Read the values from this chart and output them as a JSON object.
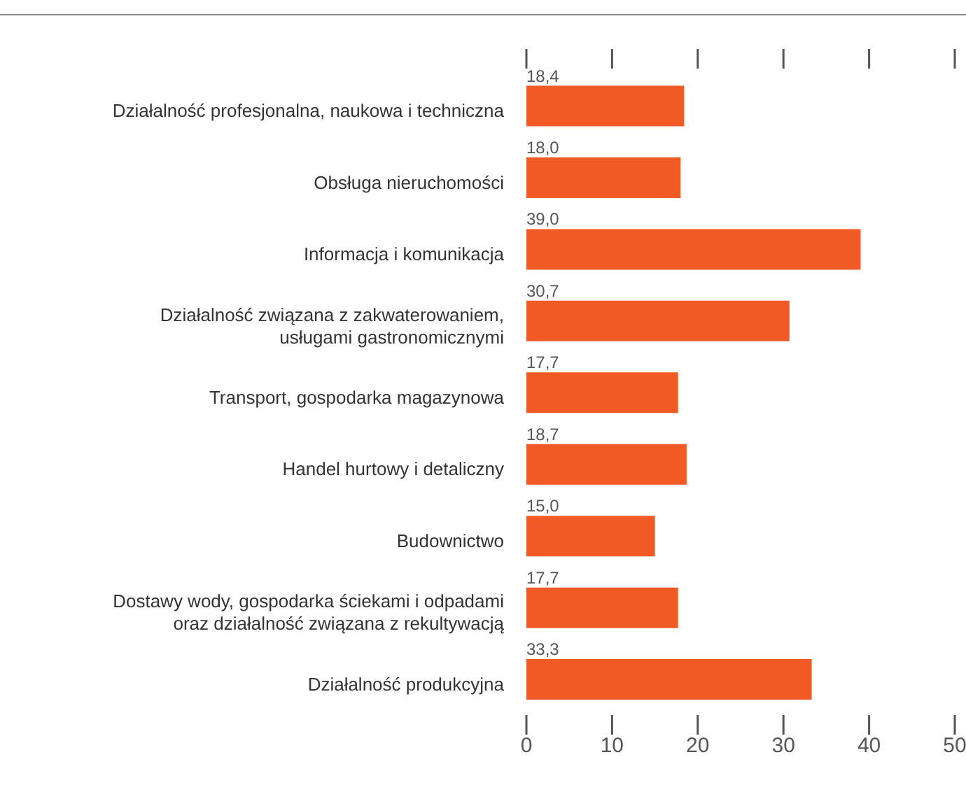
{
  "chart_data": {
    "type": "bar",
    "orientation": "horizontal",
    "categories": [
      "Działalność profesjonalna, naukowa i techniczna",
      "Obsługa nieruchomości",
      "Informacja i komunikacja",
      "Działalność związana z zakwaterowaniem, usługami gastronomicznymi",
      "Transport, gospodarka magazynowa",
      "Handel hurtowy i detaliczny",
      "Budownictwo",
      "Dostawy wody, gospodarka ściekami i odpadami oraz działalność związana z rekultywacją",
      "Działalność produkcyjna"
    ],
    "values": [
      18.4,
      18.0,
      39.0,
      30.7,
      17.7,
      18.7,
      15.0,
      17.7,
      33.3
    ],
    "value_labels": [
      "18,4",
      "18,0",
      "39,0",
      "30,7",
      "17,7",
      "18,7",
      "15,0",
      "17,7",
      "33,3"
    ],
    "color": "#f15a24",
    "xlim": [
      0,
      50
    ],
    "xticks": [
      0,
      10,
      20,
      30,
      40,
      50
    ]
  }
}
